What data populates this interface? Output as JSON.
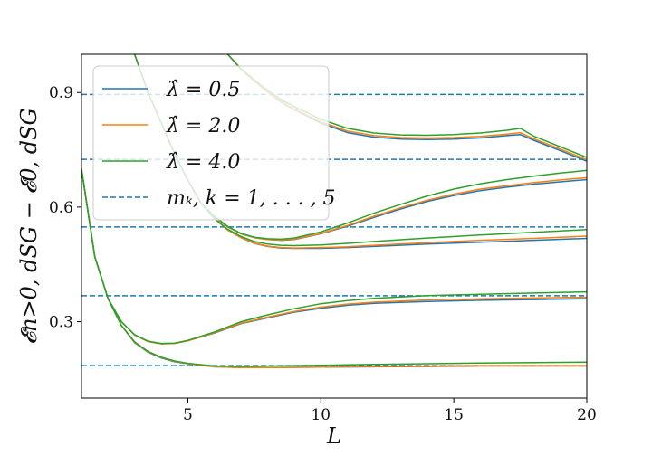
{
  "chart_data": {
    "type": "line",
    "xlabel": "L",
    "ylabel": "𝓔n>0, dSG − 𝓔0, dSG",
    "xlim": [
      1,
      20
    ],
    "ylim": [
      0.1,
      1.0
    ],
    "xticks": [
      5,
      10,
      15,
      20
    ],
    "yticks": [
      0.3,
      0.6,
      0.9
    ],
    "grid": false,
    "legend_position": "top-left",
    "legend": [
      {
        "label": "λ̂ = 0.5",
        "color": "#1f77b4",
        "style": "solid"
      },
      {
        "label": "λ̂ = 2.0",
        "color": "#ff7f0e",
        "style": "solid"
      },
      {
        "label": "λ̂ = 4.0",
        "color": "#2ca02c",
        "style": "solid"
      },
      {
        "label": "mₖ, k = 1, . . . , 5",
        "color": "#1f77b4",
        "style": "dashed"
      }
    ],
    "reference_lines": [
      0.185,
      0.368,
      0.548,
      0.725,
      0.895
    ],
    "series": [
      {
        "name": "λ̂ = 0.5",
        "color": "#1f77b4",
        "curves": [
          {
            "x": [
              1,
              1.5,
              2,
              2.5,
              3,
              3.5,
              4,
              4.5,
              5,
              6,
              7,
              8,
              10,
              12,
              14,
              16,
              18,
              20
            ],
            "y": [
              0.7,
              0.47,
              0.36,
              0.29,
              0.245,
              0.22,
              0.205,
              0.195,
              0.19,
              0.182,
              0.18,
              0.18,
              0.181,
              0.182,
              0.183,
              0.184,
              0.184,
              0.184
            ]
          },
          {
            "x": [
              1,
              1.5,
              2,
              2.5,
              3,
              3.5,
              4,
              4.5,
              5,
              6,
              7,
              8,
              9,
              10,
              11,
              12,
              14,
              16,
              18,
              20
            ],
            "y": [
              0.7,
              0.47,
              0.36,
              0.3,
              0.265,
              0.248,
              0.242,
              0.243,
              0.25,
              0.27,
              0.295,
              0.31,
              0.325,
              0.335,
              0.343,
              0.348,
              0.353,
              0.356,
              0.358,
              0.36
            ]
          },
          {
            "x": [
              3,
              3.5,
              4,
              4.5,
              5,
              5.5,
              6,
              6.5,
              7,
              7.5,
              8,
              8.5,
              9,
              10,
              11,
              12,
              14,
              16,
              18,
              20
            ],
            "y": [
              1.0,
              0.9,
              0.82,
              0.74,
              0.67,
              0.61,
              0.57,
              0.54,
              0.52,
              0.505,
              0.497,
              0.493,
              0.492,
              0.492,
              0.494,
              0.497,
              0.503,
              0.508,
              0.513,
              0.518
            ]
          },
          {
            "x": [
              5.5,
              6,
              6.5,
              7,
              7.5,
              8,
              8.5,
              9,
              10,
              11,
              12,
              13,
              14,
              15,
              16,
              17,
              18,
              19,
              20
            ],
            "y": [
              0.61,
              0.575,
              0.548,
              0.53,
              0.52,
              0.515,
              0.513,
              0.515,
              0.53,
              0.55,
              0.573,
              0.595,
              0.615,
              0.63,
              0.643,
              0.652,
              0.66,
              0.666,
              0.672
            ]
          },
          {
            "x": [
              6.5,
              7,
              7.5,
              8,
              8.5,
              9,
              10,
              11,
              12,
              13,
              14,
              15,
              16,
              17,
              17.5,
              18,
              19,
              20
            ],
            "y": [
              1.0,
              0.96,
              0.93,
              0.9,
              0.875,
              0.855,
              0.82,
              0.795,
              0.783,
              0.778,
              0.777,
              0.778,
              0.781,
              0.787,
              0.79,
              0.775,
              0.748,
              0.72
            ]
          }
        ]
      },
      {
        "name": "λ̂ = 2.0",
        "color": "#ff7f0e",
        "curves": [
          {
            "x": [
              1,
              1.5,
              2,
              2.5,
              3,
              3.5,
              4,
              4.5,
              5,
              6,
              7,
              8,
              10,
              12,
              14,
              16,
              18,
              20
            ],
            "y": [
              0.7,
              0.47,
              0.36,
              0.29,
              0.246,
              0.221,
              0.206,
              0.196,
              0.19,
              0.182,
              0.18,
              0.18,
              0.181,
              0.183,
              0.184,
              0.185,
              0.185,
              0.185
            ]
          },
          {
            "x": [
              1,
              1.5,
              2,
              2.5,
              3,
              3.5,
              4,
              4.5,
              5,
              6,
              7,
              8,
              9,
              10,
              11,
              12,
              14,
              16,
              18,
              20
            ],
            "y": [
              0.7,
              0.47,
              0.36,
              0.3,
              0.265,
              0.248,
              0.242,
              0.243,
              0.25,
              0.271,
              0.296,
              0.312,
              0.327,
              0.338,
              0.346,
              0.351,
              0.357,
              0.36,
              0.362,
              0.364
            ]
          },
          {
            "x": [
              3,
              3.5,
              4,
              4.5,
              5,
              5.5,
              6,
              6.5,
              7,
              7.5,
              8,
              8.5,
              9,
              10,
              11,
              12,
              14,
              16,
              18,
              20
            ],
            "y": [
              1.0,
              0.9,
              0.82,
              0.74,
              0.67,
              0.61,
              0.57,
              0.54,
              0.52,
              0.506,
              0.498,
              0.494,
              0.493,
              0.494,
              0.496,
              0.5,
              0.507,
              0.513,
              0.518,
              0.524
            ]
          },
          {
            "x": [
              5.5,
              6,
              6.5,
              7,
              7.5,
              8,
              8.5,
              9,
              10,
              11,
              12,
              13,
              14,
              15,
              16,
              17,
              18,
              19,
              20
            ],
            "y": [
              0.61,
              0.575,
              0.548,
              0.53,
              0.52,
              0.515,
              0.514,
              0.516,
              0.531,
              0.552,
              0.576,
              0.598,
              0.618,
              0.634,
              0.647,
              0.656,
              0.664,
              0.671,
              0.677
            ]
          },
          {
            "x": [
              6.5,
              7,
              7.5,
              8,
              8.5,
              9,
              10,
              11,
              12,
              13,
              14,
              15,
              16,
              17,
              17.5,
              18,
              19,
              20
            ],
            "y": [
              1.0,
              0.96,
              0.93,
              0.9,
              0.877,
              0.857,
              0.823,
              0.799,
              0.787,
              0.782,
              0.781,
              0.782,
              0.785,
              0.791,
              0.795,
              0.779,
              0.752,
              0.724
            ]
          }
        ]
      },
      {
        "name": "λ̂ = 4.0",
        "color": "#2ca02c",
        "curves": [
          {
            "x": [
              1,
              1.5,
              2,
              2.5,
              3,
              3.5,
              4,
              4.5,
              5,
              6,
              7,
              8,
              10,
              12,
              14,
              16,
              18,
              20
            ],
            "y": [
              0.7,
              0.47,
              0.36,
              0.29,
              0.247,
              0.222,
              0.207,
              0.197,
              0.191,
              0.184,
              0.183,
              0.184,
              0.186,
              0.188,
              0.19,
              0.192,
              0.193,
              0.194
            ]
          },
          {
            "x": [
              1,
              1.5,
              2,
              2.5,
              3,
              3.5,
              4,
              4.5,
              5,
              6,
              7,
              8,
              9,
              10,
              11,
              12,
              14,
              16,
              18,
              20
            ],
            "y": [
              0.7,
              0.47,
              0.36,
              0.3,
              0.266,
              0.249,
              0.243,
              0.244,
              0.251,
              0.273,
              0.3,
              0.318,
              0.334,
              0.347,
              0.355,
              0.361,
              0.368,
              0.372,
              0.375,
              0.378
            ]
          },
          {
            "x": [
              3,
              3.5,
              4,
              4.5,
              5,
              5.5,
              6,
              6.5,
              7,
              7.5,
              8,
              8.5,
              9,
              10,
              11,
              12,
              14,
              16,
              18,
              20
            ],
            "y": [
              1.0,
              0.9,
              0.82,
              0.74,
              0.67,
              0.61,
              0.57,
              0.542,
              0.523,
              0.51,
              0.503,
              0.5,
              0.499,
              0.501,
              0.505,
              0.51,
              0.519,
              0.527,
              0.534,
              0.541
            ]
          },
          {
            "x": [
              5.5,
              6,
              6.5,
              7,
              7.5,
              8,
              8.5,
              9,
              10,
              11,
              12,
              13,
              14,
              15,
              16,
              17,
              18,
              19,
              20
            ],
            "y": [
              0.61,
              0.576,
              0.549,
              0.531,
              0.521,
              0.517,
              0.516,
              0.519,
              0.535,
              0.558,
              0.584,
              0.607,
              0.629,
              0.647,
              0.661,
              0.672,
              0.681,
              0.689,
              0.696
            ]
          },
          {
            "x": [
              6.5,
              7,
              7.5,
              8,
              8.5,
              9,
              10,
              11,
              12,
              13,
              14,
              15,
              16,
              17,
              17.5,
              18,
              19,
              20
            ],
            "y": [
              1.0,
              0.962,
              0.933,
              0.905,
              0.882,
              0.863,
              0.83,
              0.806,
              0.794,
              0.789,
              0.788,
              0.79,
              0.794,
              0.801,
              0.806,
              0.786,
              0.758,
              0.73
            ]
          }
        ]
      }
    ]
  }
}
